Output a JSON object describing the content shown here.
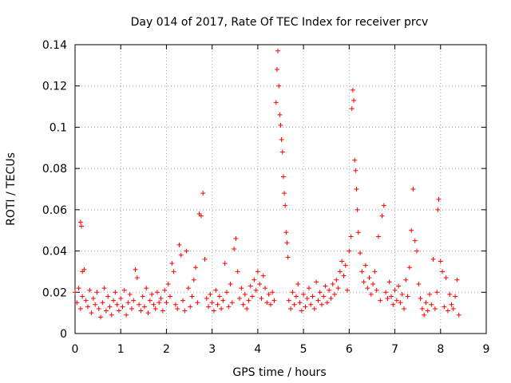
{
  "chart_data": {
    "type": "scatter",
    "title": "Day 014 of 2017, Rate Of TEC Index for receiver prcv",
    "xlabel": "GPS time / hours",
    "ylabel": "ROTI / TECUs",
    "xlim": [
      0,
      9
    ],
    "ylim": [
      0,
      0.14
    ],
    "xticks": [
      "0",
      "1",
      "2",
      "3",
      "4",
      "5",
      "6",
      "7",
      "8",
      "9"
    ],
    "yticks": [
      "0",
      "0.02",
      "0.04",
      "0.06",
      "0.08",
      "0.1",
      "0.12",
      "0.14"
    ],
    "grid": true,
    "marker": "+",
    "series": [
      {
        "name": "ROTI",
        "color": "#ff0000",
        "points": [
          [
            0.0,
            0.02
          ],
          [
            0.04,
            0.015
          ],
          [
            0.08,
            0.022
          ],
          [
            0.12,
            0.012
          ],
          [
            0.16,
            0.018
          ],
          [
            0.12,
            0.054
          ],
          [
            0.14,
            0.052
          ],
          [
            0.16,
            0.03
          ],
          [
            0.2,
            0.031
          ],
          [
            0.24,
            0.016
          ],
          [
            0.28,
            0.013
          ],
          [
            0.32,
            0.021
          ],
          [
            0.36,
            0.01
          ],
          [
            0.4,
            0.017
          ],
          [
            0.44,
            0.014
          ],
          [
            0.48,
            0.02
          ],
          [
            0.52,
            0.012
          ],
          [
            0.56,
            0.008
          ],
          [
            0.6,
            0.015
          ],
          [
            0.64,
            0.022
          ],
          [
            0.68,
            0.011
          ],
          [
            0.72,
            0.018
          ],
          [
            0.76,
            0.013
          ],
          [
            0.8,
            0.009
          ],
          [
            0.84,
            0.016
          ],
          [
            0.88,
            0.02
          ],
          [
            0.92,
            0.014
          ],
          [
            0.96,
            0.011
          ],
          [
            1.0,
            0.017
          ],
          [
            1.04,
            0.013
          ],
          [
            1.08,
            0.021
          ],
          [
            1.12,
            0.009
          ],
          [
            1.16,
            0.015
          ],
          [
            1.2,
            0.019
          ],
          [
            1.24,
            0.012
          ],
          [
            1.28,
            0.016
          ],
          [
            1.32,
            0.031
          ],
          [
            1.36,
            0.027
          ],
          [
            1.4,
            0.014
          ],
          [
            1.44,
            0.011
          ],
          [
            1.48,
            0.018
          ],
          [
            1.52,
            0.013
          ],
          [
            1.56,
            0.022
          ],
          [
            1.6,
            0.01
          ],
          [
            1.64,
            0.016
          ],
          [
            1.68,
            0.019
          ],
          [
            1.72,
            0.014
          ],
          [
            1.76,
            0.012
          ],
          [
            1.8,
            0.02
          ],
          [
            1.84,
            0.015
          ],
          [
            1.88,
            0.017
          ],
          [
            1.92,
            0.011
          ],
          [
            1.96,
            0.021
          ],
          [
            2.0,
            0.015
          ],
          [
            2.04,
            0.024
          ],
          [
            2.08,
            0.018
          ],
          [
            2.12,
            0.034
          ],
          [
            2.16,
            0.03
          ],
          [
            2.2,
            0.014
          ],
          [
            2.24,
            0.012
          ],
          [
            2.28,
            0.043
          ],
          [
            2.32,
            0.038
          ],
          [
            2.36,
            0.016
          ],
          [
            2.4,
            0.011
          ],
          [
            2.44,
            0.04
          ],
          [
            2.48,
            0.022
          ],
          [
            2.52,
            0.013
          ],
          [
            2.56,
            0.018
          ],
          [
            2.6,
            0.026
          ],
          [
            2.64,
            0.032
          ],
          [
            2.68,
            0.015
          ],
          [
            2.72,
            0.058
          ],
          [
            2.76,
            0.057
          ],
          [
            2.8,
            0.068
          ],
          [
            2.84,
            0.036
          ],
          [
            2.88,
            0.017
          ],
          [
            2.92,
            0.013
          ],
          [
            2.96,
            0.019
          ],
          [
            3.0,
            0.015
          ],
          [
            3.04,
            0.011
          ],
          [
            3.08,
            0.021
          ],
          [
            3.12,
            0.014
          ],
          [
            3.16,
            0.018
          ],
          [
            3.2,
            0.012
          ],
          [
            3.24,
            0.016
          ],
          [
            3.28,
            0.034
          ],
          [
            3.32,
            0.02
          ],
          [
            3.36,
            0.013
          ],
          [
            3.4,
            0.024
          ],
          [
            3.44,
            0.015
          ],
          [
            3.48,
            0.041
          ],
          [
            3.52,
            0.046
          ],
          [
            3.56,
            0.03
          ],
          [
            3.6,
            0.017
          ],
          [
            3.64,
            0.022
          ],
          [
            3.68,
            0.014
          ],
          [
            3.72,
            0.019
          ],
          [
            3.76,
            0.012
          ],
          [
            3.8,
            0.016
          ],
          [
            3.84,
            0.023
          ],
          [
            3.88,
            0.018
          ],
          [
            3.92,
            0.026
          ],
          [
            3.96,
            0.021
          ],
          [
            4.0,
            0.03
          ],
          [
            4.04,
            0.024
          ],
          [
            4.08,
            0.017
          ],
          [
            4.12,
            0.028
          ],
          [
            4.16,
            0.022
          ],
          [
            4.2,
            0.015
          ],
          [
            4.24,
            0.019
          ],
          [
            4.28,
            0.014
          ],
          [
            4.32,
            0.02
          ],
          [
            4.36,
            0.016
          ],
          [
            4.4,
            0.112
          ],
          [
            4.42,
            0.128
          ],
          [
            4.44,
            0.137
          ],
          [
            4.46,
            0.12
          ],
          [
            4.48,
            0.106
          ],
          [
            4.5,
            0.101
          ],
          [
            4.52,
            0.094
          ],
          [
            4.54,
            0.088
          ],
          [
            4.56,
            0.076
          ],
          [
            4.58,
            0.068
          ],
          [
            4.6,
            0.062
          ],
          [
            4.62,
            0.049
          ],
          [
            4.64,
            0.044
          ],
          [
            4.66,
            0.037
          ],
          [
            4.68,
            0.016
          ],
          [
            4.72,
            0.012
          ],
          [
            4.76,
            0.02
          ],
          [
            4.8,
            0.014
          ],
          [
            4.84,
            0.018
          ],
          [
            4.88,
            0.024
          ],
          [
            4.92,
            0.015
          ],
          [
            4.96,
            0.011
          ],
          [
            5.0,
            0.019
          ],
          [
            5.04,
            0.013
          ],
          [
            5.08,
            0.017
          ],
          [
            5.12,
            0.022
          ],
          [
            5.16,
            0.014
          ],
          [
            5.2,
            0.018
          ],
          [
            5.24,
            0.012
          ],
          [
            5.28,
            0.025
          ],
          [
            5.32,
            0.016
          ],
          [
            5.36,
            0.02
          ],
          [
            5.4,
            0.014
          ],
          [
            5.44,
            0.018
          ],
          [
            5.48,
            0.023
          ],
          [
            5.52,
            0.015
          ],
          [
            5.56,
            0.021
          ],
          [
            5.6,
            0.017
          ],
          [
            5.64,
            0.024
          ],
          [
            5.68,
            0.019
          ],
          [
            5.72,
            0.026
          ],
          [
            5.76,
            0.022
          ],
          [
            5.8,
            0.03
          ],
          [
            5.84,
            0.035
          ],
          [
            5.88,
            0.028
          ],
          [
            5.92,
            0.033
          ],
          [
            5.96,
            0.021
          ],
          [
            6.0,
            0.04
          ],
          [
            6.04,
            0.047
          ],
          [
            6.06,
            0.109
          ],
          [
            6.08,
            0.118
          ],
          [
            6.1,
            0.113
          ],
          [
            6.12,
            0.084
          ],
          [
            6.14,
            0.079
          ],
          [
            6.16,
            0.07
          ],
          [
            6.18,
            0.06
          ],
          [
            6.2,
            0.049
          ],
          [
            6.24,
            0.039
          ],
          [
            6.28,
            0.03
          ],
          [
            6.32,
            0.025
          ],
          [
            6.36,
            0.033
          ],
          [
            6.4,
            0.022
          ],
          [
            6.44,
            0.027
          ],
          [
            6.48,
            0.019
          ],
          [
            6.52,
            0.024
          ],
          [
            6.56,
            0.03
          ],
          [
            6.6,
            0.021
          ],
          [
            6.64,
            0.047
          ],
          [
            6.68,
            0.016
          ],
          [
            6.72,
            0.057
          ],
          [
            6.76,
            0.062
          ],
          [
            6.8,
            0.02
          ],
          [
            6.84,
            0.017
          ],
          [
            6.88,
            0.025
          ],
          [
            6.92,
            0.018
          ],
          [
            6.96,
            0.014
          ],
          [
            7.0,
            0.021
          ],
          [
            7.04,
            0.016
          ],
          [
            7.08,
            0.023
          ],
          [
            7.12,
            0.015
          ],
          [
            7.16,
            0.019
          ],
          [
            7.2,
            0.012
          ],
          [
            7.24,
            0.026
          ],
          [
            7.28,
            0.018
          ],
          [
            7.32,
            0.032
          ],
          [
            7.36,
            0.05
          ],
          [
            7.4,
            0.07
          ],
          [
            7.44,
            0.045
          ],
          [
            7.48,
            0.04
          ],
          [
            7.52,
            0.024
          ],
          [
            7.56,
            0.017
          ],
          [
            7.6,
            0.012
          ],
          [
            7.64,
            0.009
          ],
          [
            7.68,
            0.015
          ],
          [
            7.72,
            0.011
          ],
          [
            7.76,
            0.019
          ],
          [
            7.8,
            0.014
          ],
          [
            7.84,
            0.036
          ],
          [
            7.88,
            0.012
          ],
          [
            7.92,
            0.02
          ],
          [
            7.94,
            0.06
          ],
          [
            7.96,
            0.065
          ],
          [
            8.0,
            0.035
          ],
          [
            8.04,
            0.03
          ],
          [
            8.08,
            0.013
          ],
          [
            8.12,
            0.027
          ],
          [
            8.16,
            0.011
          ],
          [
            8.2,
            0.019
          ],
          [
            8.24,
            0.014
          ],
          [
            8.28,
            0.012
          ],
          [
            8.32,
            0.018
          ],
          [
            8.36,
            0.026
          ],
          [
            8.4,
            0.009
          ]
        ]
      }
    ]
  }
}
